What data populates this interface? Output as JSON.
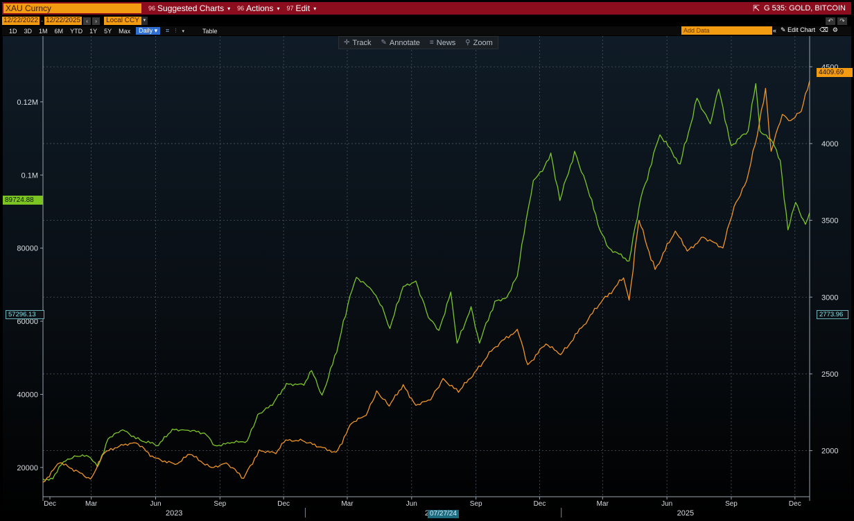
{
  "toolbar": {
    "ticker": "XAU Curncy",
    "menu": [
      {
        "num": "96",
        "label": "Suggested Charts"
      },
      {
        "num": "96",
        "label": "Actions"
      },
      {
        "num": "97",
        "label": "Edit"
      }
    ],
    "security_title": "G 535: GOLD, BITCOIN",
    "start_date": "12/22/2022",
    "end_date": "12/22/2025",
    "currency": "Local CCY",
    "periods": [
      "1D",
      "3D",
      "1M",
      "6M",
      "YTD",
      "1Y",
      "5Y",
      "Max"
    ],
    "frequency": "Daily",
    "table_label": "Table",
    "add_data_placeholder": "Add Data",
    "edit_chart_label": "Edit Chart"
  },
  "chart_tools": [
    {
      "icon": "crosshair-icon",
      "glyph": "✛",
      "label": "Track"
    },
    {
      "icon": "pencil-icon",
      "glyph": "✎",
      "label": "Annotate"
    },
    {
      "icon": "news-icon",
      "glyph": "≡",
      "label": "News"
    },
    {
      "icon": "magnifier-icon",
      "glyph": "⚲",
      "label": "Zoom"
    }
  ],
  "tags": {
    "btc_last": "89724.88",
    "btc_low": "57296.13",
    "gold_last": "4409.69",
    "gold_low": "2773.96",
    "crosshair_date": "07/27/24"
  },
  "colors": {
    "bitcoin": "#7cc52a",
    "gold": "#f0952a",
    "background_top": "#0f1a24",
    "background_bottom": "#000000",
    "grid": "#4a5560"
  },
  "chart_data": {
    "type": "line",
    "title": "",
    "x_range": [
      "2022-12-22",
      "2025-12-22"
    ],
    "x_ticks": [
      "Dec",
      "Mar",
      "Jun",
      "Sep",
      "Dec",
      "Mar",
      "Jun",
      "Sep",
      "Dec",
      "Mar",
      "Jun",
      "Sep",
      "Dec"
    ],
    "x_tick_dates": [
      "2022-12-01",
      "2023-03-01",
      "2023-06-01",
      "2023-09-01",
      "2023-12-01",
      "2024-03-01",
      "2024-06-01",
      "2024-09-01",
      "2024-12-01",
      "2025-03-01",
      "2025-06-01",
      "2025-09-01",
      "2025-12-01"
    ],
    "year_labels": [
      "2023",
      "2024",
      "2025"
    ],
    "left_axis": {
      "ticks": [
        "20000",
        "40000",
        "60000",
        "80000",
        "0.1M",
        "0.12M"
      ],
      "tick_values": [
        20000,
        40000,
        60000,
        80000,
        100000,
        120000
      ],
      "range": [
        12000,
        138000
      ]
    },
    "right_axis": {
      "ticks": [
        "2000",
        "2500",
        "3000",
        "3500",
        "4000",
        "4500"
      ],
      "tick_values": [
        2000,
        2500,
        3000,
        3500,
        4000,
        4500
      ],
      "range": [
        1700,
        4700
      ]
    },
    "grid": true,
    "series": [
      {
        "name": "BITCOIN",
        "axis": "left",
        "color": "#7cc52a",
        "points": [
          [
            "2022-12-22",
            16800
          ],
          [
            "2023-01-05",
            16900
          ],
          [
            "2023-01-20",
            21500
          ],
          [
            "2023-02-05",
            23200
          ],
          [
            "2023-02-25",
            23000
          ],
          [
            "2023-03-10",
            20200
          ],
          [
            "2023-03-25",
            27800
          ],
          [
            "2023-04-15",
            30300
          ],
          [
            "2023-05-10",
            27500
          ],
          [
            "2023-06-05",
            26000
          ],
          [
            "2023-06-25",
            30500
          ],
          [
            "2023-07-15",
            30200
          ],
          [
            "2023-08-10",
            29400
          ],
          [
            "2023-08-25",
            26000
          ],
          [
            "2023-09-15",
            26600
          ],
          [
            "2023-10-10",
            27300
          ],
          [
            "2023-10-25",
            34500
          ],
          [
            "2023-11-15",
            37000
          ],
          [
            "2023-12-05",
            43000
          ],
          [
            "2023-12-30",
            42500
          ],
          [
            "2024-01-10",
            46500
          ],
          [
            "2024-01-25",
            39800
          ],
          [
            "2024-02-15",
            51500
          ],
          [
            "2024-03-05",
            67000
          ],
          [
            "2024-03-14",
            72000
          ],
          [
            "2024-04-05",
            68500
          ],
          [
            "2024-04-20",
            64000
          ],
          [
            "2024-05-01",
            58000
          ],
          [
            "2024-05-20",
            69500
          ],
          [
            "2024-06-07",
            71000
          ],
          [
            "2024-06-25",
            61000
          ],
          [
            "2024-07-10",
            57500
          ],
          [
            "2024-07-27",
            68000
          ],
          [
            "2024-08-05",
            54000
          ],
          [
            "2024-08-25",
            64000
          ],
          [
            "2024-09-06",
            54000
          ],
          [
            "2024-09-28",
            65500
          ],
          [
            "2024-10-15",
            66500
          ],
          [
            "2024-10-30",
            72300
          ],
          [
            "2024-11-12",
            88000
          ],
          [
            "2024-11-22",
            98500
          ],
          [
            "2024-12-05",
            101000
          ],
          [
            "2024-12-17",
            106000
          ],
          [
            "2024-12-30",
            93000
          ],
          [
            "2025-01-20",
            106500
          ],
          [
            "2025-02-05",
            98000
          ],
          [
            "2025-02-25",
            85000
          ],
          [
            "2025-03-10",
            80000
          ],
          [
            "2025-04-08",
            76500
          ],
          [
            "2025-04-25",
            94000
          ],
          [
            "2025-05-22",
            111000
          ],
          [
            "2025-06-20",
            103000
          ],
          [
            "2025-07-14",
            121000
          ],
          [
            "2025-08-02",
            114000
          ],
          [
            "2025-08-14",
            123500
          ],
          [
            "2025-09-01",
            108000
          ],
          [
            "2025-09-25",
            112000
          ],
          [
            "2025-10-06",
            125000
          ],
          [
            "2025-10-12",
            112000
          ],
          [
            "2025-10-30",
            109000
          ],
          [
            "2025-11-10",
            104000
          ],
          [
            "2025-11-21",
            85000
          ],
          [
            "2025-12-02",
            92500
          ],
          [
            "2025-12-16",
            86500
          ],
          [
            "2025-12-22",
            89724.88
          ]
        ]
      },
      {
        "name": "GOLD",
        "axis": "right",
        "color": "#f0952a",
        "points": [
          [
            "2022-12-22",
            1795
          ],
          [
            "2023-01-15",
            1920
          ],
          [
            "2023-02-10",
            1865
          ],
          [
            "2023-02-28",
            1815
          ],
          [
            "2023-03-20",
            1985
          ],
          [
            "2023-04-13",
            2040
          ],
          [
            "2023-05-04",
            2050
          ],
          [
            "2023-05-30",
            1955
          ],
          [
            "2023-06-29",
            1910
          ],
          [
            "2023-07-20",
            1975
          ],
          [
            "2023-08-20",
            1890
          ],
          [
            "2023-09-10",
            1920
          ],
          [
            "2023-10-05",
            1820
          ],
          [
            "2023-10-27",
            2005
          ],
          [
            "2023-11-20",
            1980
          ],
          [
            "2023-12-04",
            2070
          ],
          [
            "2023-12-28",
            2065
          ],
          [
            "2024-01-20",
            2025
          ],
          [
            "2024-02-14",
            1990
          ],
          [
            "2024-03-08",
            2180
          ],
          [
            "2024-03-28",
            2230
          ],
          [
            "2024-04-12",
            2390
          ],
          [
            "2024-04-30",
            2290
          ],
          [
            "2024-05-20",
            2430
          ],
          [
            "2024-06-07",
            2295
          ],
          [
            "2024-06-28",
            2330
          ],
          [
            "2024-07-16",
            2470
          ],
          [
            "2024-08-07",
            2380
          ],
          [
            "2024-08-30",
            2510
          ],
          [
            "2024-09-26",
            2665
          ],
          [
            "2024-10-30",
            2790
          ],
          [
            "2024-11-14",
            2560
          ],
          [
            "2024-12-10",
            2695
          ],
          [
            "2024-12-31",
            2625
          ],
          [
            "2025-01-30",
            2800
          ],
          [
            "2025-02-24",
            2950
          ],
          [
            "2025-03-31",
            3125
          ],
          [
            "2025-04-08",
            2980
          ],
          [
            "2025-04-22",
            3500
          ],
          [
            "2025-05-15",
            3180
          ],
          [
            "2025-06-13",
            3430
          ],
          [
            "2025-06-30",
            3300
          ],
          [
            "2025-07-23",
            3390
          ],
          [
            "2025-08-20",
            3320
          ],
          [
            "2025-09-05",
            3590
          ],
          [
            "2025-09-23",
            3760
          ],
          [
            "2025-10-08",
            4050
          ],
          [
            "2025-10-20",
            4360
          ],
          [
            "2025-10-28",
            3950
          ],
          [
            "2025-11-13",
            4190
          ],
          [
            "2025-11-25",
            4150
          ],
          [
            "2025-12-10",
            4210
          ],
          [
            "2025-12-22",
            4409.69
          ]
        ]
      }
    ]
  }
}
